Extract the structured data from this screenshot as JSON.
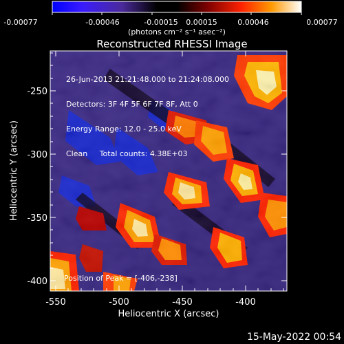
{
  "colorbar": {
    "tick_labels": [
      "-0.00077",
      "-0.00046",
      "-0.00015",
      "0.00015",
      "0.00046",
      "0.00077"
    ],
    "unit_label": "(photons cm⁻² s⁻¹ asec⁻²)"
  },
  "header": {
    "title": "Reconstructed RHESSI Image"
  },
  "overlay": {
    "line1": "26-Jun-2013 21:21:48.000 to 21:24:08.000",
    "line2": "Detectors: 3F 4F 5F 6F 7F 8F, Att 0",
    "line3": "Energy Range: 12.0 - 25.0 keV",
    "line4": "Clean     Total counts: 4.38E+03",
    "peak": "Position of Peak = [-406,-238]"
  },
  "chart_data": {
    "type": "heatmap",
    "title": "Reconstructed RHESSI Image",
    "xlabel": "Heliocentric X (arcsec)",
    "ylabel": "Heliocentric Y (arcsec)",
    "xlim": [
      -555,
      -368
    ],
    "ylim": [
      -410,
      -222
    ],
    "x_ticks": [
      -550,
      -500,
      -450,
      -400
    ],
    "y_ticks": [
      -250,
      -300,
      -350,
      -400
    ],
    "colorbar_range": [
      -0.00077,
      0.00077
    ],
    "colorbar_ticks": [
      -0.00077,
      -0.00046,
      -0.00015,
      0.00015,
      0.00046,
      0.00077
    ],
    "peak_position": [
      -406,
      -238
    ],
    "grid": false
  },
  "footer": {
    "date": "15-May-2022 00:54"
  }
}
